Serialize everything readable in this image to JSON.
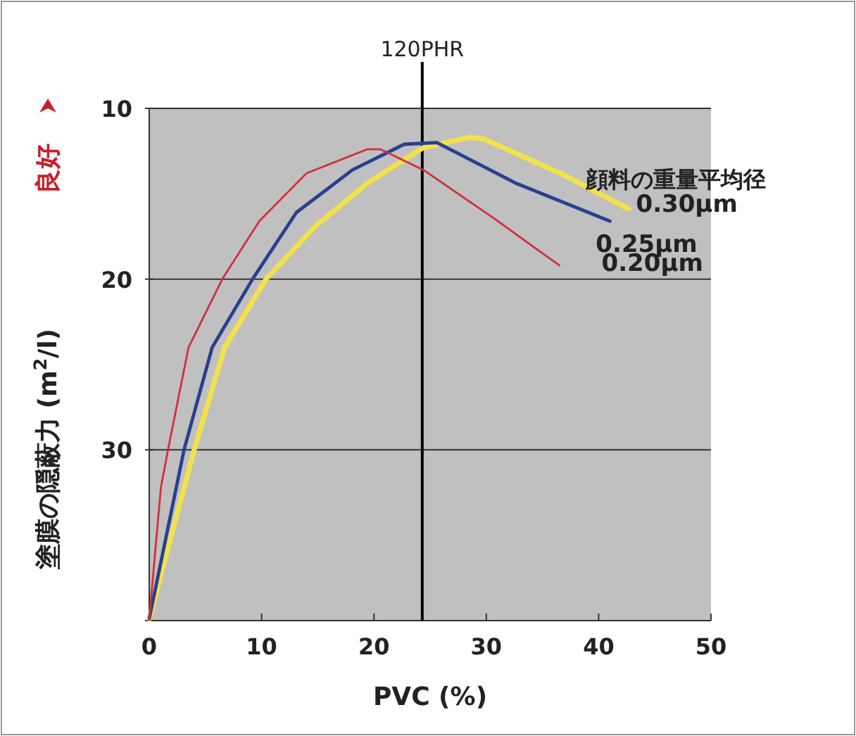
{
  "chart_data": {
    "type": "line",
    "xlabel": "PVC (%)",
    "ylabel": "塗膜の隠蔽力 (m$^{2}$/l)",
    "legend_title": "顔料の重量平均径",
    "xlim": [
      0,
      50
    ],
    "xticks": [
      0,
      10,
      20,
      30,
      40,
      50
    ],
    "ylim": [
      40,
      10
    ],
    "yticks": [
      10,
      20,
      30,
      {
        "value": 40,
        "label": null
      }
    ],
    "grid": "y",
    "marker": "none",
    "line_style": "solid",
    "annotations": [
      "良好"
    ],
    "ref_lines": [
      {
        "axis": "x",
        "value": 24.3,
        "label": "120PHR",
        "color": "#000000"
      }
    ],
    "series": [
      {
        "name": "0.20μm",
        "color": "#d0303a",
        "x": [
          0,
          1.04,
          1.67,
          3.5,
          6.5,
          9.8,
          14,
          19.4,
          20.6,
          24.4,
          30.6,
          36.5
        ],
        "values": [
          39.9,
          32.2,
          30,
          24,
          20,
          16.6,
          13.8,
          12.4,
          12.4,
          13.6,
          16.4,
          19.2
        ]
      },
      {
        "name": "0.25μm",
        "color": "#2a3f8f",
        "x": [
          0,
          3.1,
          5.6,
          9.2,
          13.1,
          18.1,
          22.7,
          25.6,
          32.7,
          41.0
        ],
        "values": [
          39.9,
          30,
          24,
          20,
          16.1,
          13.6,
          12.1,
          12.0,
          14.4,
          16.6
        ]
      },
      {
        "name": "0.30μm",
        "color": "#f2e24a",
        "x": [
          0,
          4,
          6.7,
          10.4,
          14.8,
          19.4,
          24.4,
          28.5,
          29.8,
          36.9,
          42.7
        ],
        "values": [
          39.9,
          30,
          24,
          20,
          16.9,
          14.4,
          12.3,
          11.7,
          11.8,
          13.9,
          15.9
        ]
      }
    ]
  }
}
